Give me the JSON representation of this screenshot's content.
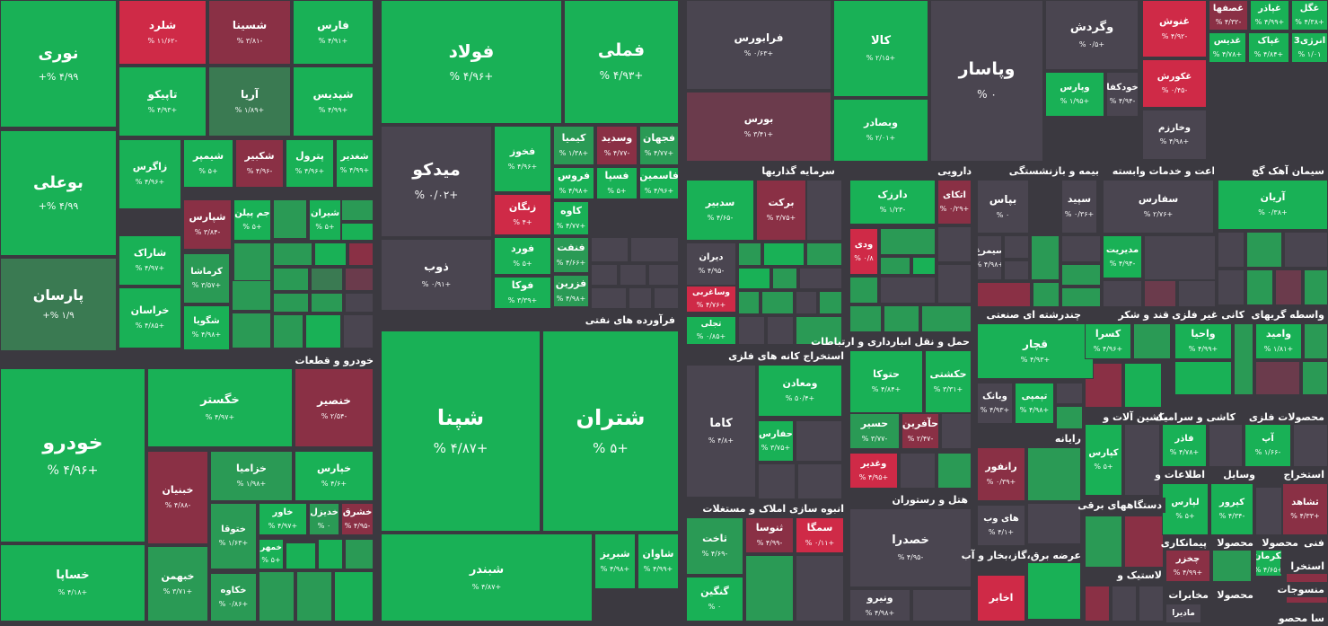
{
  "sectors": [
    {
      "name": "خودرو و قطعات"
    },
    {
      "name": "فرآورده های نفتی"
    },
    {
      "name": "سرمایه گذاریها"
    },
    {
      "name": "دارویی"
    },
    {
      "name": "بیمه و بازنشستگی"
    },
    {
      "name": "زراعت و خدمات وابسته"
    },
    {
      "name": "سیمان آهک گچ"
    },
    {
      "name": "استخراج کانه های فلزی"
    },
    {
      "name": "حمل و نقل انبارداری و ارتباطات"
    },
    {
      "name": "چندرشته ای صنعتی"
    },
    {
      "name": "قند و شکر"
    },
    {
      "name": "کانی غیر فلزی"
    },
    {
      "name": "واسطه گریهای"
    },
    {
      "name": "ماشین آلات و"
    },
    {
      "name": "کاشی و سرامیک"
    },
    {
      "name": "محصولات فلزی"
    },
    {
      "name": "رایانه"
    },
    {
      "name": "اطلاعات و"
    },
    {
      "name": "وسایل"
    },
    {
      "name": "استخراج"
    },
    {
      "name": "انبوه سازی املاک و مستغلات"
    },
    {
      "name": "هتل و رستوران"
    },
    {
      "name": "دستگاههای برقی"
    },
    {
      "name": "عرضه برق،گاز،بخار و آب"
    },
    {
      "name": "لاستیک و"
    },
    {
      "name": "پیمانکاری"
    },
    {
      "name": "محصولا"
    },
    {
      "name": "محصولا"
    },
    {
      "name": "فنی"
    },
    {
      "name": "مخابرات"
    },
    {
      "name": "محصولا"
    },
    {
      "name": "منسوجات"
    },
    {
      "name": "استخرا"
    },
    {
      "name": "سا محصو"
    }
  ],
  "tiles": [
    {
      "name": "نوری",
      "change": "۴/۹۹ %+"
    },
    {
      "name": "بوعلی",
      "change": "۴/۹۹ %+"
    },
    {
      "name": "پارسان",
      "change": "۱/۹ %+"
    },
    {
      "name": "شلرد",
      "change": "-۱۱/۶۲ %"
    },
    {
      "name": "شسینا",
      "change": "-۳/۸۱ %"
    },
    {
      "name": "فارس",
      "change": "+۴/۹۱ %"
    },
    {
      "name": "تاپیکو",
      "change": "+۴/۹۳ %"
    },
    {
      "name": "آریا",
      "change": "+۱/۸۹ %"
    },
    {
      "name": "شپدیس",
      "change": "+۴/۹۹ %"
    },
    {
      "name": "زاگرس",
      "change": "+۴/۹۶ %"
    },
    {
      "name": "شیمپر",
      "change": "+۵ %"
    },
    {
      "name": "شکبیر",
      "change": "-۴/۹۶ %"
    },
    {
      "name": "پترول",
      "change": "+۴/۹۶ %"
    },
    {
      "name": "شغدیر",
      "change": "+۴/۹۹ %"
    },
    {
      "name": "شپارس",
      "change": "-۳/۸۴ %"
    },
    {
      "name": "جم پیلن",
      "change": "+۵ %"
    },
    {
      "name": "شیران",
      "change": "+۵ %"
    },
    {
      "name": "شاراک",
      "change": "+۴/۹۷ %"
    },
    {
      "name": "کرماشا",
      "change": "+۳/۵۷ %"
    },
    {
      "name": "خراسان",
      "change": "+۴/۸۵ %"
    },
    {
      "name": "شگویا",
      "change": "+۴/۹۸ %"
    },
    {
      "name": "خودرو",
      "change": "+۴/۹۶ %"
    },
    {
      "name": "خساپا",
      "change": "+۴/۱۸ %"
    },
    {
      "name": "خگستر",
      "change": "+۴/۹۷ %"
    },
    {
      "name": "خنصیر",
      "change": "-۲/۵۴ %"
    },
    {
      "name": "خبنیان",
      "change": "-۴/۸۸ %"
    },
    {
      "name": "خزامیا",
      "change": "+۱/۹۸ %"
    },
    {
      "name": "خپارس",
      "change": "+۴/۶ %"
    },
    {
      "name": "خاور",
      "change": "+۴/۹۷ %"
    },
    {
      "name": "خدیزل",
      "change": "۰ %"
    },
    {
      "name": "خشرق",
      "change": "-۴/۹۵ %"
    },
    {
      "name": "ختوقا",
      "change": "+۱/۶۳ %"
    },
    {
      "name": "خمهر",
      "change": "+۵ %"
    },
    {
      "name": "خبهمن",
      "change": "+۳/۷۱ %"
    },
    {
      "name": "خکاوه",
      "change": "+۰/۸۶ %"
    },
    {
      "name": "فولاد",
      "change": "+۴/۹۶ %"
    },
    {
      "name": "فملی",
      "change": "+۴/۹۳ %"
    },
    {
      "name": "میدکو",
      "change": "+۰/۰۲ %"
    },
    {
      "name": "ذوب",
      "change": "+۰/۹۱ %"
    },
    {
      "name": "فخوز",
      "change": "+۴/۹۶ %"
    },
    {
      "name": "کیمیا",
      "change": "+۱/۳۸ %"
    },
    {
      "name": "وسدید",
      "change": "-۴/۷۷ %"
    },
    {
      "name": "فجهان",
      "change": "+۴/۷۷ %"
    },
    {
      "name": "فروس",
      "change": "+۴/۹۸ %"
    },
    {
      "name": "فسپا",
      "change": "+۵ %"
    },
    {
      "name": "فاسمین",
      "change": "+۴/۹۶ %"
    },
    {
      "name": "زنگان",
      "change": "+۴ %"
    },
    {
      "name": "کاوه",
      "change": "+۴/۷۷ %"
    },
    {
      "name": "فنفت",
      "change": "+۴/۶۶ %"
    },
    {
      "name": "فورد",
      "change": "+۵ %"
    },
    {
      "name": "فزرین",
      "change": "+۴/۹۸ %"
    },
    {
      "name": "فوکا",
      "change": "+۳/۳۹ %"
    },
    {
      "name": "شپنا",
      "change": "+۴/۸۷ %"
    },
    {
      "name": "شتران",
      "change": "+۵ %"
    },
    {
      "name": "شبندر",
      "change": "+۴/۸۷ %"
    },
    {
      "name": "شبریز",
      "change": "+۴/۹۸ %"
    },
    {
      "name": "شاوان",
      "change": "+۴/۹۹ %"
    },
    {
      "name": "فرابورس",
      "change": "+۰/۶۳ %"
    },
    {
      "name": "کالا",
      "change": "+۲/۱۵ %"
    },
    {
      "name": "وپاسار",
      "change": "۰ %"
    },
    {
      "name": "وگردش",
      "change": "+۰/۵ %"
    },
    {
      "name": "غنوش",
      "change": "-۴/۹۲ %"
    },
    {
      "name": "غصفها",
      "change": "-۴/۳۲ %"
    },
    {
      "name": "غپاذر",
      "change": "+۴/۹۹ %"
    },
    {
      "name": "غگل",
      "change": "+۴/۳۸ %"
    },
    {
      "name": "غدیس",
      "change": "+۴/۷۸ %"
    },
    {
      "name": "غپاک",
      "change": "+۴/۸۴ %"
    },
    {
      "name": "انرژی3",
      "change": "۱/۰۱ %"
    },
    {
      "name": "بورس",
      "change": "+۳/۴۱ %"
    },
    {
      "name": "وبصادر",
      "change": "+۲/۰۱ %"
    },
    {
      "name": "وپارس",
      "change": "+۱/۹۵ %"
    },
    {
      "name": "خودکفا",
      "change": "-۴/۹۴ %"
    },
    {
      "name": "غکورش",
      "change": "-۰/۴۵ %"
    },
    {
      "name": "وخارزم",
      "change": "+۴/۹۸ %"
    },
    {
      "name": "سدبیر",
      "change": "-۴/۶۵ %"
    },
    {
      "name": "برکت",
      "change": "+۳/۷۵ %"
    },
    {
      "name": "دارزک",
      "change": "-۱/۲۳ %"
    },
    {
      "name": "اتکای",
      "change": "+۰/۲۹ %"
    },
    {
      "name": "بپاس",
      "change": "۰ %"
    },
    {
      "name": "سپید",
      "change": "+۰/۳۶ %"
    },
    {
      "name": "سفارس",
      "change": "+۲/۷۶ %"
    },
    {
      "name": "آریان",
      "change": "+۰/۳۸ %"
    },
    {
      "name": "دیران",
      "change": "-۴/۹۵ %"
    },
    {
      "name": "ودی",
      "change": "۰/۸ %"
    },
    {
      "name": "سیمرغ",
      "change": "+۴/۹۸ %"
    },
    {
      "name": "مدیریت",
      "change": "-۴/۹۴ %"
    },
    {
      "name": "وساغربی",
      "change": "+۴/۷۶ %"
    },
    {
      "name": "تجلی",
      "change": "+۰/۸۵ %"
    },
    {
      "name": "کاما",
      "change": "+۴/۸ %"
    },
    {
      "name": "ومعادن",
      "change": "+۵۰/۴ %"
    },
    {
      "name": "حفارس",
      "change": "+۳/۷۵ %"
    },
    {
      "name": "حتوکا",
      "change": "+۴/۸۴ %"
    },
    {
      "name": "حکشتی",
      "change": "+۳/۳۱ %"
    },
    {
      "name": "حسیر",
      "change": "-۳/۷۷ %"
    },
    {
      "name": "حآفرین",
      "change": "-۲/۴۷ %"
    },
    {
      "name": "وغدیر",
      "change": "+۴/۹۵ %"
    },
    {
      "name": "قچار",
      "change": "+۴/۹۳ %"
    },
    {
      "name": "کسرا",
      "change": "+۴/۹۶ %"
    },
    {
      "name": "واحیا",
      "change": "+۴/۹۹ %"
    },
    {
      "name": "وامید",
      "change": "+۱/۸۱ %"
    },
    {
      "name": "وبانک",
      "change": "+۴/۹۳ %"
    },
    {
      "name": "تپمپی",
      "change": "+۴/۹۸ %"
    },
    {
      "name": "کپارس",
      "change": "+۵ %"
    },
    {
      "name": "فاذر",
      "change": "+۴/۷۸ %"
    },
    {
      "name": "آپ",
      "change": "-۱/۶۶ %"
    },
    {
      "name": "رانفور",
      "change": "+۰/۳۹ %"
    },
    {
      "name": "های وب",
      "change": "+۴/۱ %"
    },
    {
      "name": "لپارس",
      "change": "+۵ %"
    },
    {
      "name": "کپرور",
      "change": "-۴/۳۴ %"
    },
    {
      "name": "ثشاهد",
      "change": "+۴/۳۳ %"
    },
    {
      "name": "ثاخت",
      "change": "-۴/۶۹ %"
    },
    {
      "name": "ثنوسا",
      "change": "-۴/۹۹ %"
    },
    {
      "name": "سمگا",
      "change": "+۰/۱۱ %"
    },
    {
      "name": "خصدرا",
      "change": "-۴/۹۵ %"
    },
    {
      "name": "چخزر",
      "change": "+۴/۹۹ %"
    },
    {
      "name": "ثکرمان",
      "change": "+۴/۶۵ %"
    },
    {
      "name": "گنگین",
      "change": "۰ %"
    },
    {
      "name": "ونیرو",
      "change": "+۴/۹۸ %"
    },
    {
      "name": "اخابر",
      "change": ""
    },
    {
      "name": "مادیرا",
      "change": ""
    }
  ]
}
